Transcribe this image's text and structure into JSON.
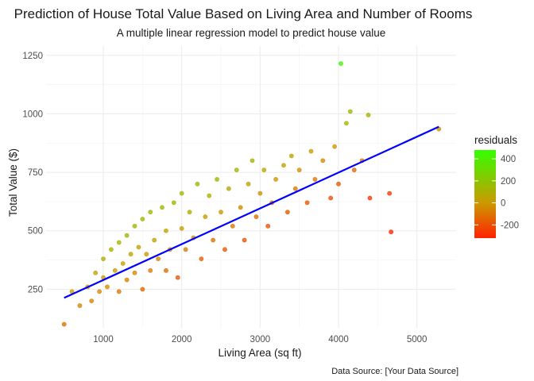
{
  "chart_data": {
    "type": "scatter",
    "title": "Prediction of House Total Value Based on Living Area and Number of Rooms",
    "subtitle": "A multiple linear regression model to predict house value",
    "xlabel": "Living Area (sq ft)",
    "ylabel": "Total Value ($)",
    "caption": "Data Source: [Your Data Source]",
    "xlim": [
      270,
      5500
    ],
    "ylim": [
      85,
      1290
    ],
    "x_ticks": [
      1000,
      2000,
      3000,
      4000,
      5000
    ],
    "x_tick_labels": [
      "1000",
      "2000",
      "3000",
      "4000",
      "5000"
    ],
    "y_ticks": [
      250,
      500,
      750,
      1000,
      1250
    ],
    "y_tick_labels": [
      "250",
      "500",
      "750",
      "1000",
      "1250"
    ],
    "grid": true,
    "color_legend": {
      "title": "residuals",
      "placement": "right",
      "range": [
        -320,
        480
      ],
      "ticks": [
        400,
        200,
        0,
        -200
      ],
      "tick_labels": [
        "400",
        "200",
        "0",
        "-200"
      ],
      "colors": {
        "low": "#ff2200",
        "mid": "#cc9900",
        "high": "#33ff00"
      }
    },
    "series": [
      {
        "type": "scatter",
        "color_by": "residuals",
        "points": [
          {
            "x": 500,
            "y": 100,
            "residual": -110
          },
          {
            "x": 600,
            "y": 240,
            "residual": 10
          },
          {
            "x": 700,
            "y": 180,
            "residual": -60
          },
          {
            "x": 800,
            "y": 260,
            "residual": 10
          },
          {
            "x": 850,
            "y": 200,
            "residual": -60
          },
          {
            "x": 900,
            "y": 320,
            "residual": 50
          },
          {
            "x": 950,
            "y": 240,
            "residual": -40
          },
          {
            "x": 1000,
            "y": 300,
            "residual": 10
          },
          {
            "x": 1000,
            "y": 380,
            "residual": 90
          },
          {
            "x": 1050,
            "y": 260,
            "residual": -40
          },
          {
            "x": 1100,
            "y": 420,
            "residual": 110
          },
          {
            "x": 1150,
            "y": 330,
            "residual": 10
          },
          {
            "x": 1200,
            "y": 240,
            "residual": -90
          },
          {
            "x": 1200,
            "y": 450,
            "residual": 120
          },
          {
            "x": 1250,
            "y": 360,
            "residual": 20
          },
          {
            "x": 1300,
            "y": 290,
            "residual": -60
          },
          {
            "x": 1300,
            "y": 480,
            "residual": 130
          },
          {
            "x": 1350,
            "y": 400,
            "residual": 40
          },
          {
            "x": 1400,
            "y": 320,
            "residual": -50
          },
          {
            "x": 1400,
            "y": 520,
            "residual": 150
          },
          {
            "x": 1450,
            "y": 430,
            "residual": 50
          },
          {
            "x": 1500,
            "y": 250,
            "residual": -140
          },
          {
            "x": 1500,
            "y": 550,
            "residual": 160
          },
          {
            "x": 1550,
            "y": 400,
            "residual": 0
          },
          {
            "x": 1600,
            "y": 330,
            "residual": -80
          },
          {
            "x": 1600,
            "y": 580,
            "residual": 170
          },
          {
            "x": 1650,
            "y": 460,
            "residual": 40
          },
          {
            "x": 1700,
            "y": 380,
            "residual": -50
          },
          {
            "x": 1750,
            "y": 600,
            "residual": 160
          },
          {
            "x": 1800,
            "y": 330,
            "residual": -120
          },
          {
            "x": 1800,
            "y": 500,
            "residual": 50
          },
          {
            "x": 1850,
            "y": 420,
            "residual": -40
          },
          {
            "x": 1900,
            "y": 620,
            "residual": 150
          },
          {
            "x": 1950,
            "y": 300,
            "residual": -180
          },
          {
            "x": 2000,
            "y": 510,
            "residual": 20
          },
          {
            "x": 2000,
            "y": 660,
            "residual": 170
          },
          {
            "x": 2050,
            "y": 420,
            "residual": -80
          },
          {
            "x": 2100,
            "y": 580,
            "residual": 70
          },
          {
            "x": 2150,
            "y": 470,
            "residual": -50
          },
          {
            "x": 2200,
            "y": 700,
            "residual": 170
          },
          {
            "x": 2250,
            "y": 380,
            "residual": -160
          },
          {
            "x": 2300,
            "y": 560,
            "residual": 10
          },
          {
            "x": 2350,
            "y": 650,
            "residual": 90
          },
          {
            "x": 2400,
            "y": 460,
            "residual": -110
          },
          {
            "x": 2450,
            "y": 720,
            "residual": 140
          },
          {
            "x": 2500,
            "y": 580,
            "residual": -10
          },
          {
            "x": 2550,
            "y": 420,
            "residual": -180
          },
          {
            "x": 2600,
            "y": 680,
            "residual": 70
          },
          {
            "x": 2650,
            "y": 520,
            "residual": -100
          },
          {
            "x": 2700,
            "y": 760,
            "residual": 130
          },
          {
            "x": 2750,
            "y": 600,
            "residual": -40
          },
          {
            "x": 2800,
            "y": 460,
            "residual": -190
          },
          {
            "x": 2850,
            "y": 700,
            "residual": 40
          },
          {
            "x": 2900,
            "y": 800,
            "residual": 130
          },
          {
            "x": 2950,
            "y": 560,
            "residual": -120
          },
          {
            "x": 3000,
            "y": 660,
            "residual": -30
          },
          {
            "x": 3050,
            "y": 760,
            "residual": 60
          },
          {
            "x": 3100,
            "y": 520,
            "residual": -190
          },
          {
            "x": 3150,
            "y": 620,
            "residual": -100
          },
          {
            "x": 3200,
            "y": 720,
            "residual": -10
          },
          {
            "x": 3300,
            "y": 780,
            "residual": 30
          },
          {
            "x": 3350,
            "y": 580,
            "residual": -180
          },
          {
            "x": 3400,
            "y": 820,
            "residual": 50
          },
          {
            "x": 3450,
            "y": 680,
            "residual": -100
          },
          {
            "x": 3500,
            "y": 760,
            "residual": -30
          },
          {
            "x": 3600,
            "y": 620,
            "residual": -180
          },
          {
            "x": 3650,
            "y": 840,
            "residual": 30
          },
          {
            "x": 3700,
            "y": 720,
            "residual": -100
          },
          {
            "x": 3800,
            "y": 800,
            "residual": -40
          },
          {
            "x": 3900,
            "y": 640,
            "residual": -210
          },
          {
            "x": 3950,
            "y": 860,
            "residual": 0
          },
          {
            "x": 4000,
            "y": 700,
            "residual": -170
          },
          {
            "x": 4030,
            "y": 1215,
            "residual": 430
          },
          {
            "x": 4100,
            "y": 960,
            "residual": 130
          },
          {
            "x": 4150,
            "y": 1010,
            "residual": 170
          },
          {
            "x": 4200,
            "y": 760,
            "residual": -130
          },
          {
            "x": 4300,
            "y": 800,
            "residual": -100
          },
          {
            "x": 4380,
            "y": 995,
            "residual": 110
          },
          {
            "x": 4400,
            "y": 640,
            "residual": -260
          },
          {
            "x": 4650,
            "y": 660,
            "residual": -260
          },
          {
            "x": 4670,
            "y": 495,
            "residual": -330
          },
          {
            "x": 5280,
            "y": 935,
            "residual": -10
          }
        ]
      },
      {
        "type": "line",
        "color": "#0000ff",
        "points": [
          {
            "x": 500,
            "y": 213
          },
          {
            "x": 5280,
            "y": 945
          }
        ]
      }
    ]
  }
}
